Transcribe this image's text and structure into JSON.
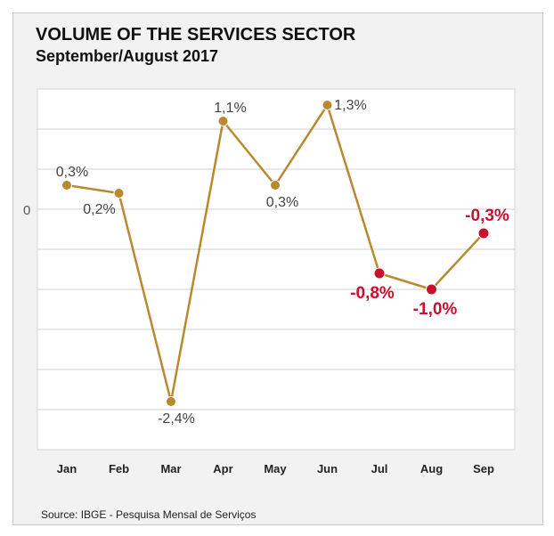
{
  "header": {
    "title": "VOLUME OF THE SERVICES SECTOR",
    "subtitle": "September/August 2017"
  },
  "footer": {
    "source": "Source: IBGE - Pesquisa Mensal de Serviços"
  },
  "colors": {
    "line": "#b88a2e",
    "highlight": "#c8102e",
    "grid": "#d0d0d0"
  },
  "chart_data": {
    "type": "line",
    "title": "VOLUME OF THE SERVICES SECTOR",
    "subtitle": "September/August 2017",
    "xlabel": "",
    "ylabel": "",
    "categories": [
      "Jan",
      "Feb",
      "Mar",
      "Apr",
      "May",
      "Jun",
      "Jul",
      "Aug",
      "Sep"
    ],
    "values": [
      0.3,
      0.2,
      -2.4,
      1.1,
      0.3,
      1.3,
      -0.8,
      -1.0,
      -0.3
    ],
    "data_labels": [
      "0,3%",
      "0,2%",
      "-2,4%",
      "1,1%",
      "0,3%",
      "1,3%",
      "-0,8%",
      "-1,0%",
      "-0,3%"
    ],
    "highlighted": [
      false,
      false,
      false,
      false,
      false,
      false,
      true,
      true,
      true
    ],
    "y_zero_label": "0",
    "ylim": [
      -3.0,
      1.5
    ],
    "grid": true,
    "legend": "none"
  }
}
